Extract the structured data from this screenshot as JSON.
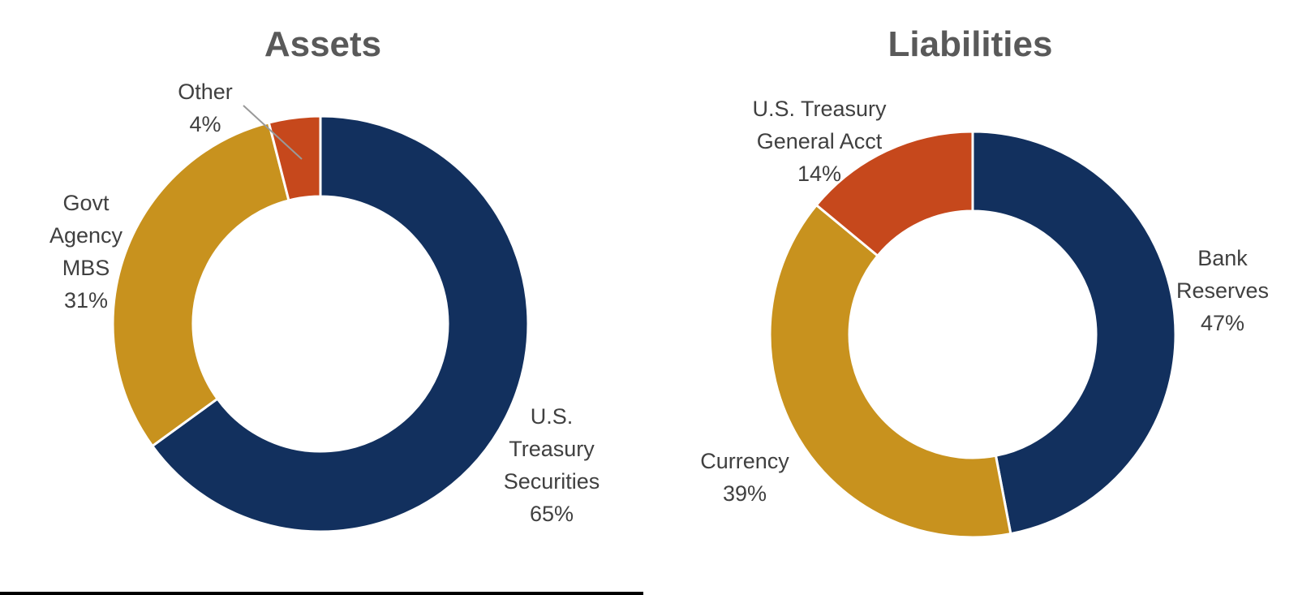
{
  "page": {
    "background_color": "#FFFFFF"
  },
  "chart_data": [
    {
      "type": "pie",
      "subtype": "donut",
      "title": "Assets",
      "labels": [
        "U.S. Treasury Securities",
        "Govt Agency MBS",
        "Other"
      ],
      "values": [
        65,
        31,
        4
      ],
      "unit": "%",
      "colors": [
        "#12305E",
        "#C8921E",
        "#C6481C"
      ],
      "label_display": [
        [
          "U.S.",
          "Treasury",
          "Securities",
          "65%"
        ],
        [
          "Govt",
          "Agency",
          "MBS",
          "31%"
        ],
        [
          "Other",
          "4%"
        ]
      ],
      "start_angle_deg": 0,
      "direction": "clockwise",
      "donut_hole_ratio": 0.61,
      "slice_gap_color": "#FFFFFF",
      "legend": "none",
      "has_leader_line": true,
      "leader_line_color": "#999999",
      "title_color": "#595959",
      "label_color": "#404040"
    },
    {
      "type": "pie",
      "subtype": "donut",
      "title": "Liabilities",
      "labels": [
        "Bank Reserves",
        "Currency",
        "U.S. Treasury General Acct"
      ],
      "values": [
        47,
        39,
        14
      ],
      "unit": "%",
      "colors": [
        "#12305E",
        "#C8921E",
        "#C6481C"
      ],
      "label_display": [
        [
          "Bank",
          "Reserves",
          "47%"
        ],
        [
          "Currency",
          "39%"
        ],
        [
          "U.S. Treasury",
          "General Acct",
          "14%"
        ]
      ],
      "start_angle_deg": 0,
      "direction": "clockwise",
      "donut_hole_ratio": 0.61,
      "slice_gap_color": "#FFFFFF",
      "legend": "none",
      "has_leader_line": false,
      "title_color": "#595959",
      "label_color": "#404040"
    }
  ],
  "footer": {
    "progress_bar_color": "#000000"
  }
}
